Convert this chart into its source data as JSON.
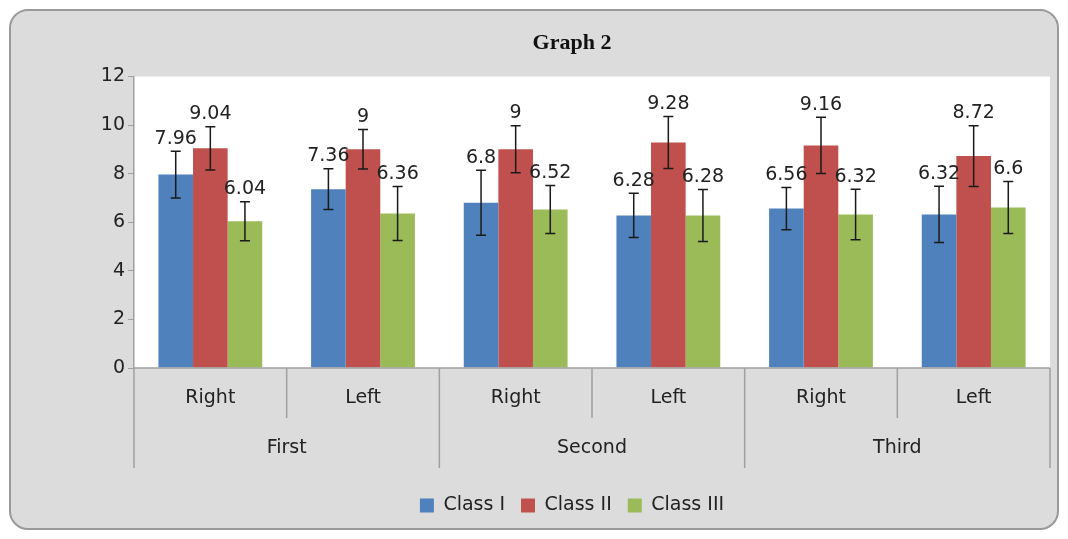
{
  "chart_data": {
    "type": "bar",
    "title": "Graph 2",
    "categories": [
      "Right",
      "Left",
      "Right",
      "Left",
      "Right",
      "Left"
    ],
    "annotations": [
      "First",
      "Second",
      "Third"
    ],
    "series": [
      {
        "name": "Class I",
        "color": "#4f81bd",
        "values": [
          7.96,
          7.36,
          6.8,
          6.28,
          6.56,
          6.32
        ],
        "errors": [
          0.96,
          0.84,
          1.34,
          0.91,
          0.87,
          1.16
        ]
      },
      {
        "name": "Class II",
        "color": "#c0504d",
        "values": [
          9.04,
          9,
          9,
          9.28,
          9.16,
          8.72
        ],
        "errors": [
          0.89,
          0.81,
          0.97,
          1.07,
          1.16,
          1.25
        ]
      },
      {
        "name": "Class III",
        "color": "#9bbb59",
        "values": [
          6.04,
          6.36,
          6.52,
          6.28,
          6.32,
          6.6
        ],
        "errors": [
          0.8,
          1.11,
          0.99,
          1.07,
          1.04,
          1.07
        ]
      }
    ],
    "ylim": [
      0,
      12
    ],
    "yticks": [
      0,
      2,
      4,
      6,
      8,
      10,
      12
    ],
    "grid": false,
    "legend": "bottom",
    "data_labels": true
  }
}
